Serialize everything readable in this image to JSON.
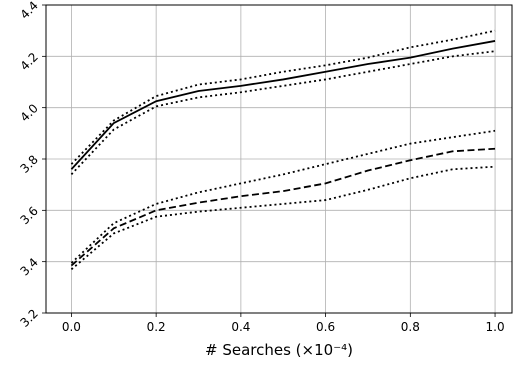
{
  "chart_data": {
    "type": "line",
    "title": "",
    "xlabel": "# Searches (×10⁻⁴)",
    "ylabel": "",
    "xlim": [
      -0.06,
      1.04
    ],
    "ylim": [
      3.2,
      4.4
    ],
    "xticks": [
      0.0,
      0.2,
      0.4,
      0.6,
      0.8,
      1.0
    ],
    "xtick_labels": [
      "0.0",
      "0.2",
      "0.4",
      "0.6",
      "0.8",
      "1.0"
    ],
    "yticks": [
      3.2,
      3.4,
      3.6,
      3.8,
      4.0,
      4.2,
      4.4
    ],
    "ytick_labels": [
      "3.2",
      "3.4",
      "3.6",
      "3.8",
      "4.0",
      "4.2",
      "4.4"
    ],
    "grid": true,
    "legend": "none",
    "x": [
      0.0,
      0.1,
      0.2,
      0.3,
      0.4,
      0.5,
      0.6,
      0.7,
      0.8,
      0.9,
      1.0
    ],
    "series": [
      {
        "style": "solid",
        "color": "#000000",
        "values": [
          3.76,
          3.94,
          4.025,
          4.065,
          4.085,
          4.11,
          4.14,
          4.17,
          4.195,
          4.23,
          4.26
        ]
      },
      {
        "style": "dotted",
        "color": "#000000",
        "values": [
          3.78,
          3.95,
          4.045,
          4.09,
          4.11,
          4.14,
          4.165,
          4.195,
          4.235,
          4.265,
          4.3
        ]
      },
      {
        "style": "dotted",
        "color": "#000000",
        "values": [
          3.74,
          3.915,
          4.005,
          4.04,
          4.06,
          4.085,
          4.11,
          4.14,
          4.17,
          4.2,
          4.22
        ]
      },
      {
        "style": "dashed",
        "color": "#000000",
        "values": [
          3.385,
          3.53,
          3.6,
          3.63,
          3.655,
          3.675,
          3.705,
          3.755,
          3.795,
          3.83,
          3.84
        ]
      },
      {
        "style": "dotted",
        "color": "#000000",
        "values": [
          3.395,
          3.55,
          3.625,
          3.67,
          3.705,
          3.74,
          3.78,
          3.82,
          3.86,
          3.885,
          3.91
        ]
      },
      {
        "style": "dotted",
        "color": "#000000",
        "values": [
          3.37,
          3.51,
          3.575,
          3.595,
          3.61,
          3.625,
          3.64,
          3.68,
          3.725,
          3.76,
          3.77
        ]
      }
    ]
  }
}
